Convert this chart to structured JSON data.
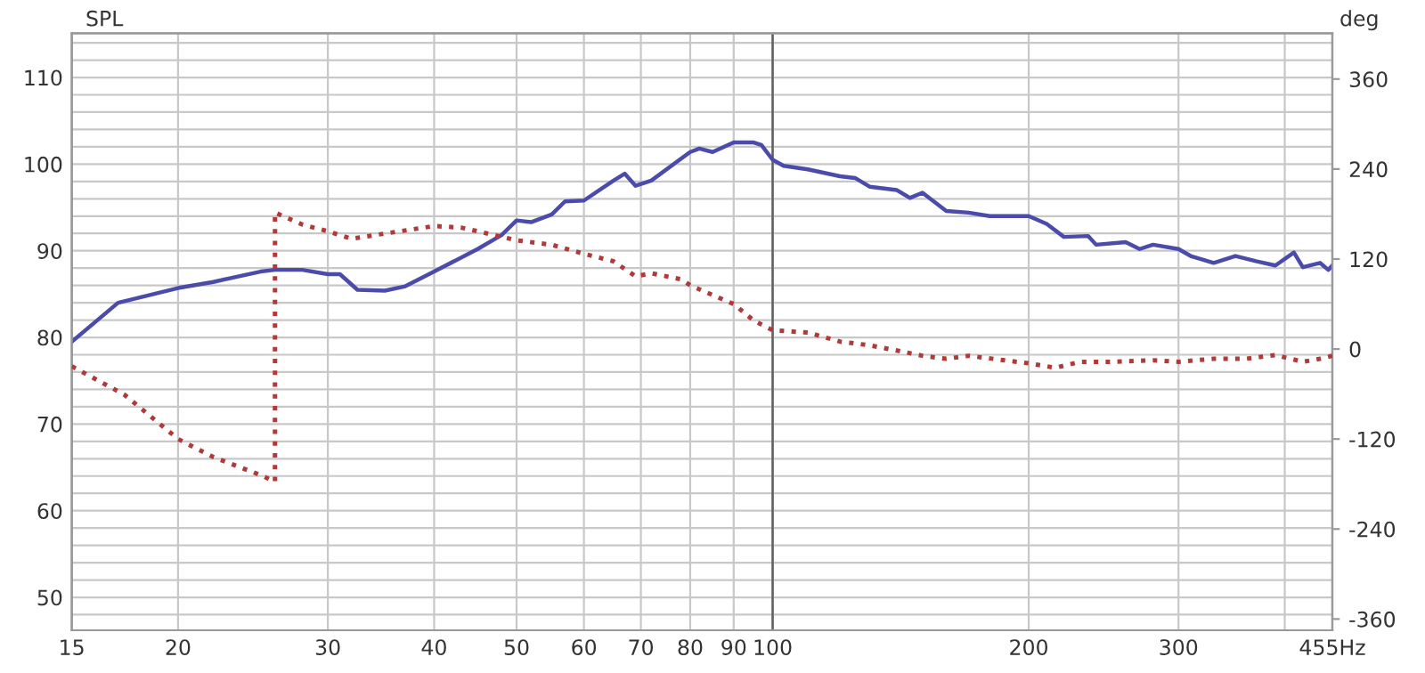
{
  "chart_data": {
    "type": "line",
    "ylabel": "SPL",
    "y2label": "deg",
    "x": [
      15,
      17,
      20,
      22,
      25,
      26,
      28,
      30,
      31,
      32.5,
      35,
      37,
      40,
      45,
      48,
      50,
      52,
      55,
      57,
      60,
      65,
      67,
      69,
      72,
      80,
      82,
      85,
      90,
      95,
      97,
      100,
      103,
      110,
      120,
      125,
      130,
      140,
      145,
      150,
      160,
      170,
      180,
      200,
      210,
      220,
      235,
      240,
      260,
      270,
      280,
      300,
      310,
      330,
      350,
      370,
      390,
      410,
      420,
      440,
      450,
      455
    ],
    "series": [
      {
        "color": "#4b4bab",
        "line_style": "solid",
        "values": [
          79.5,
          84.0,
          85.7,
          86.4,
          87.6,
          87.8,
          87.8,
          87.3,
          87.3,
          85.5,
          85.4,
          85.9,
          87.6,
          90.2,
          91.8,
          93.5,
          93.3,
          94.2,
          95.7,
          95.8,
          98.1,
          98.9,
          97.5,
          98.1,
          101.4,
          101.8,
          101.4,
          102.5,
          102.5,
          102.2,
          100.5,
          99.8,
          99.4,
          98.6,
          98.4,
          97.4,
          97.0,
          96.1,
          96.7,
          94.6,
          94.4,
          94.0,
          94.0,
          93.1,
          91.6,
          91.7,
          90.7,
          91.0,
          90.2,
          90.7,
          90.2,
          89.4,
          88.6,
          89.4,
          88.8,
          88.3,
          89.8,
          88.1,
          88.6,
          87.8,
          88.3
        ]
      },
      {
        "color": "#b03a3a",
        "line_style": "dotted",
        "axis": "y2",
        "x": [
          15,
          17.3,
          20,
          22,
          25,
          26,
          26,
          28,
          30,
          32,
          35,
          40,
          43,
          45,
          50,
          55,
          60,
          65,
          69,
          72,
          78,
          80,
          85,
          90,
          95,
          100,
          110,
          120,
          130,
          140,
          150,
          160,
          170,
          200,
          215,
          230,
          250,
          280,
          300,
          330,
          360,
          390,
          420,
          440,
          455
        ],
        "values": [
          -23,
          -61,
          -120,
          -144,
          -168,
          -177,
          182,
          166,
          157,
          147,
          154,
          164,
          162,
          157,
          145,
          139,
          127,
          117,
          97,
          101,
          93,
          85,
          72,
          60,
          38,
          25,
          22,
          10,
          5,
          -2,
          -9,
          -13,
          -9,
          -19,
          -25,
          -17,
          -17,
          -15,
          -17,
          -13,
          -13,
          -8,
          -17,
          -13,
          -9
        ]
      }
    ],
    "log": "x",
    "xlim": [
      15,
      455
    ],
    "xticks": [
      15,
      20,
      30,
      40,
      50,
      60,
      70,
      80,
      90,
      100,
      200,
      300,
      {
        "value": 400,
        "label": null
      },
      {
        "value": 455,
        "label": "455Hz"
      }
    ],
    "ylim": [
      46.2,
      115.1
    ],
    "yticks": [
      {
        "value": 48,
        "label": null
      },
      50,
      {
        "value": 52,
        "label": null
      },
      {
        "value": 54,
        "label": null
      },
      {
        "value": 56,
        "label": null
      },
      {
        "value": 58,
        "label": null
      },
      60,
      {
        "value": 62,
        "label": null
      },
      {
        "value": 64,
        "label": null
      },
      {
        "value": 66,
        "label": null
      },
      {
        "value": 68,
        "label": null
      },
      70,
      {
        "value": 72,
        "label": null
      },
      {
        "value": 74,
        "label": null
      },
      {
        "value": 76,
        "label": null
      },
      {
        "value": 78,
        "label": null
      },
      80,
      {
        "value": 82,
        "label": null
      },
      {
        "value": 84,
        "label": null
      },
      {
        "value": 86,
        "label": null
      },
      {
        "value": 88,
        "label": null
      },
      90,
      {
        "value": 92,
        "label": null
      },
      {
        "value": 94,
        "label": null
      },
      {
        "value": 96,
        "label": null
      },
      {
        "value": 98,
        "label": null
      },
      100,
      {
        "value": 102,
        "label": null
      },
      {
        "value": 104,
        "label": null
      },
      {
        "value": 106,
        "label": null
      },
      {
        "value": 108,
        "label": null
      },
      110,
      {
        "value": 112,
        "label": null
      },
      {
        "value": 114,
        "label": null
      }
    ],
    "y2lim": [
      -375,
      421
    ],
    "y2ticks": [
      -360,
      -240,
      -120,
      0,
      120,
      240,
      360
    ],
    "grid": true,
    "ref_lines": [
      {
        "axis": "x",
        "value": 100,
        "color": "#606060"
      }
    ]
  }
}
